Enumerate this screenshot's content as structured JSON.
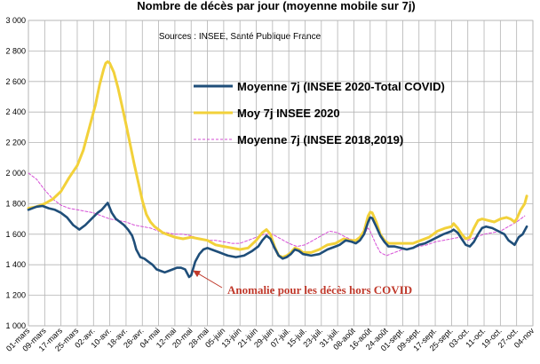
{
  "chart_data": {
    "type": "line",
    "title": "Nombre de décès par jour (moyenne mobile sur 7j)",
    "subtitle": "Sources : INSEE, Santé Publique France",
    "ylim": [
      1000,
      3000
    ],
    "y_ticks": [
      "1 000",
      "1 200",
      "1 400",
      "1 600",
      "1 800",
      "2 000",
      "2 200",
      "2 400",
      "2 600",
      "2 800",
      "3 000"
    ],
    "y_tick_values": [
      1000,
      1200,
      1400,
      1600,
      1800,
      2000,
      2200,
      2400,
      2600,
      2800,
      3000
    ],
    "x_ticks": [
      "01-mars",
      "09-mars",
      "17-mars",
      "25-mars",
      "02-avr.",
      "10-avr.",
      "18-avr.",
      "26-avr.",
      "04-mai",
      "12-mai",
      "20-mai",
      "28-mai",
      "05-juin",
      "13-juin",
      "21-juin",
      "29-juin",
      "07-juil.",
      "15-juil.",
      "23-juil.",
      "31-juil.",
      "08-août",
      "16-août",
      "24-août",
      "01-sept.",
      "09-sept.",
      "17-sept.",
      "25-sept.",
      "03-oct.",
      "11-oct.",
      "19-oct.",
      "27-oct.",
      "04-nov"
    ],
    "x_tick_days": [
      0,
      8,
      16,
      24,
      32,
      40,
      48,
      56,
      64,
      72,
      80,
      88,
      96,
      104,
      112,
      120,
      128,
      136,
      144,
      152,
      160,
      168,
      176,
      184,
      192,
      200,
      208,
      216,
      224,
      232,
      240,
      248
    ],
    "xlim": [
      0,
      248
    ],
    "grid": true,
    "legend_position": "top-right",
    "series": [
      {
        "name": "Moyenne 7j (INSEE 2020-Total COVID)",
        "color": "#1f4e79",
        "style": "solid",
        "points": [
          [
            0,
            1760
          ],
          [
            4,
            1780
          ],
          [
            7,
            1785
          ],
          [
            10,
            1770
          ],
          [
            13,
            1760
          ],
          [
            16,
            1740
          ],
          [
            19,
            1710
          ],
          [
            22,
            1660
          ],
          [
            25,
            1630
          ],
          [
            28,
            1660
          ],
          [
            31,
            1700
          ],
          [
            34,
            1740
          ],
          [
            36,
            1760
          ],
          [
            38,
            1790
          ],
          [
            39,
            1805
          ],
          [
            41,
            1740
          ],
          [
            43,
            1700
          ],
          [
            45,
            1680
          ],
          [
            47,
            1660
          ],
          [
            49,
            1630
          ],
          [
            51,
            1590
          ],
          [
            52,
            1550
          ],
          [
            53,
            1500
          ],
          [
            55,
            1450
          ],
          [
            57,
            1440
          ],
          [
            59,
            1420
          ],
          [
            61,
            1400
          ],
          [
            63,
            1370
          ],
          [
            65,
            1360
          ],
          [
            67,
            1350
          ],
          [
            69,
            1360
          ],
          [
            71,
            1370
          ],
          [
            73,
            1380
          ],
          [
            75,
            1380
          ],
          [
            77,
            1370
          ],
          [
            79,
            1320
          ],
          [
            80,
            1330
          ],
          [
            82,
            1420
          ],
          [
            84,
            1470
          ],
          [
            86,
            1500
          ],
          [
            88,
            1510
          ],
          [
            90,
            1500
          ],
          [
            94,
            1480
          ],
          [
            98,
            1460
          ],
          [
            102,
            1450
          ],
          [
            106,
            1460
          ],
          [
            110,
            1490
          ],
          [
            113,
            1520
          ],
          [
            115,
            1560
          ],
          [
            117,
            1590
          ],
          [
            119,
            1570
          ],
          [
            121,
            1510
          ],
          [
            123,
            1460
          ],
          [
            125,
            1440
          ],
          [
            127,
            1450
          ],
          [
            129,
            1470
          ],
          [
            131,
            1500
          ],
          [
            133,
            1490
          ],
          [
            135,
            1470
          ],
          [
            139,
            1460
          ],
          [
            143,
            1470
          ],
          [
            147,
            1500
          ],
          [
            151,
            1520
          ],
          [
            153,
            1530
          ],
          [
            156,
            1560
          ],
          [
            159,
            1550
          ],
          [
            161,
            1540
          ],
          [
            163,
            1560
          ],
          [
            165,
            1600
          ],
          [
            167,
            1680
          ],
          [
            168,
            1710
          ],
          [
            169,
            1705
          ],
          [
            171,
            1650
          ],
          [
            173,
            1590
          ],
          [
            175,
            1550
          ],
          [
            177,
            1520
          ],
          [
            180,
            1520
          ],
          [
            183,
            1510
          ],
          [
            186,
            1500
          ],
          [
            189,
            1510
          ],
          [
            192,
            1530
          ],
          [
            195,
            1540
          ],
          [
            198,
            1560
          ],
          [
            201,
            1580
          ],
          [
            204,
            1600
          ],
          [
            206,
            1610
          ],
          [
            208,
            1620
          ],
          [
            209,
            1630
          ],
          [
            211,
            1610
          ],
          [
            213,
            1570
          ],
          [
            215,
            1530
          ],
          [
            217,
            1520
          ],
          [
            219,
            1550
          ],
          [
            221,
            1600
          ],
          [
            223,
            1640
          ],
          [
            225,
            1650
          ],
          [
            228,
            1640
          ],
          [
            231,
            1620
          ],
          [
            234,
            1600
          ],
          [
            236,
            1560
          ],
          [
            238,
            1540
          ],
          [
            239,
            1530
          ],
          [
            241,
            1580
          ],
          [
            243,
            1600
          ],
          [
            245,
            1650
          ]
        ]
      },
      {
        "name": "Moy 7j INSEE 2020",
        "color": "#f2d13a",
        "style": "solid",
        "points": [
          [
            0,
            1770
          ],
          [
            4,
            1780
          ],
          [
            8,
            1800
          ],
          [
            12,
            1830
          ],
          [
            16,
            1880
          ],
          [
            20,
            1970
          ],
          [
            24,
            2050
          ],
          [
            27,
            2150
          ],
          [
            30,
            2300
          ],
          [
            33,
            2450
          ],
          [
            35,
            2580
          ],
          [
            37,
            2680
          ],
          [
            38,
            2720
          ],
          [
            39,
            2730
          ],
          [
            40,
            2720
          ],
          [
            42,
            2660
          ],
          [
            44,
            2560
          ],
          [
            46,
            2440
          ],
          [
            48,
            2320
          ],
          [
            50,
            2190
          ],
          [
            52,
            2060
          ],
          [
            54,
            1940
          ],
          [
            56,
            1820
          ],
          [
            58,
            1730
          ],
          [
            60,
            1680
          ],
          [
            62,
            1650
          ],
          [
            64,
            1630
          ],
          [
            66,
            1610
          ],
          [
            68,
            1600
          ],
          [
            72,
            1580
          ],
          [
            76,
            1570
          ],
          [
            80,
            1580
          ],
          [
            84,
            1570
          ],
          [
            88,
            1560
          ],
          [
            92,
            1530
          ],
          [
            96,
            1520
          ],
          [
            100,
            1510
          ],
          [
            104,
            1500
          ],
          [
            108,
            1510
          ],
          [
            112,
            1560
          ],
          [
            115,
            1610
          ],
          [
            117,
            1630
          ],
          [
            119,
            1600
          ],
          [
            121,
            1520
          ],
          [
            123,
            1460
          ],
          [
            125,
            1450
          ],
          [
            127,
            1460
          ],
          [
            129,
            1480
          ],
          [
            131,
            1510
          ],
          [
            133,
            1500
          ],
          [
            135,
            1480
          ],
          [
            139,
            1480
          ],
          [
            143,
            1500
          ],
          [
            147,
            1530
          ],
          [
            151,
            1540
          ],
          [
            155,
            1570
          ],
          [
            158,
            1560
          ],
          [
            161,
            1560
          ],
          [
            163,
            1580
          ],
          [
            165,
            1620
          ],
          [
            167,
            1720
          ],
          [
            168,
            1745
          ],
          [
            169,
            1740
          ],
          [
            171,
            1680
          ],
          [
            173,
            1600
          ],
          [
            175,
            1560
          ],
          [
            177,
            1540
          ],
          [
            181,
            1540
          ],
          [
            185,
            1540
          ],
          [
            189,
            1540
          ],
          [
            193,
            1560
          ],
          [
            197,
            1580
          ],
          [
            201,
            1620
          ],
          [
            205,
            1640
          ],
          [
            208,
            1650
          ],
          [
            209,
            1670
          ],
          [
            211,
            1640
          ],
          [
            213,
            1600
          ],
          [
            215,
            1570
          ],
          [
            217,
            1580
          ],
          [
            219,
            1640
          ],
          [
            221,
            1690
          ],
          [
            223,
            1700
          ],
          [
            226,
            1690
          ],
          [
            229,
            1680
          ],
          [
            232,
            1700
          ],
          [
            235,
            1710
          ],
          [
            237,
            1700
          ],
          [
            239,
            1680
          ],
          [
            240,
            1700
          ],
          [
            242,
            1760
          ],
          [
            244,
            1800
          ],
          [
            245,
            1850
          ]
        ]
      },
      {
        "name": "Moyenne 7j (INSEE 2018,2019)",
        "color": "#d64fd6",
        "style": "dashed",
        "points": [
          [
            0,
            2000
          ],
          [
            4,
            1960
          ],
          [
            8,
            1890
          ],
          [
            12,
            1830
          ],
          [
            16,
            1790
          ],
          [
            20,
            1770
          ],
          [
            24,
            1760
          ],
          [
            28,
            1750
          ],
          [
            32,
            1740
          ],
          [
            36,
            1720
          ],
          [
            40,
            1700
          ],
          [
            44,
            1690
          ],
          [
            48,
            1680
          ],
          [
            52,
            1660
          ],
          [
            56,
            1650
          ],
          [
            60,
            1640
          ],
          [
            64,
            1620
          ],
          [
            68,
            1610
          ],
          [
            72,
            1600
          ],
          [
            76,
            1600
          ],
          [
            80,
            1590
          ],
          [
            84,
            1570
          ],
          [
            88,
            1560
          ],
          [
            92,
            1560
          ],
          [
            96,
            1550
          ],
          [
            100,
            1540
          ],
          [
            104,
            1540
          ],
          [
            108,
            1560
          ],
          [
            112,
            1580
          ],
          [
            116,
            1600
          ],
          [
            120,
            1600
          ],
          [
            124,
            1570
          ],
          [
            128,
            1540
          ],
          [
            132,
            1520
          ],
          [
            136,
            1530
          ],
          [
            140,
            1560
          ],
          [
            144,
            1590
          ],
          [
            148,
            1620
          ],
          [
            152,
            1610
          ],
          [
            156,
            1580
          ],
          [
            160,
            1560
          ],
          [
            164,
            1580
          ],
          [
            167,
            1640
          ],
          [
            168,
            1620
          ],
          [
            171,
            1530
          ],
          [
            173,
            1480
          ],
          [
            176,
            1460
          ],
          [
            180,
            1480
          ],
          [
            184,
            1500
          ],
          [
            188,
            1510
          ],
          [
            192,
            1520
          ],
          [
            196,
            1530
          ],
          [
            200,
            1550
          ],
          [
            204,
            1560
          ],
          [
            208,
            1570
          ],
          [
            212,
            1580
          ],
          [
            216,
            1560
          ],
          [
            220,
            1580
          ],
          [
            224,
            1600
          ],
          [
            228,
            1610
          ],
          [
            232,
            1620
          ],
          [
            236,
            1650
          ],
          [
            240,
            1680
          ],
          [
            244,
            1720
          ]
        ]
      }
    ],
    "annotation": {
      "text": "Anomalie pour les décès hors COVID",
      "color": "#c0392b",
      "arrow_target": [
        79,
        1380
      ]
    }
  }
}
